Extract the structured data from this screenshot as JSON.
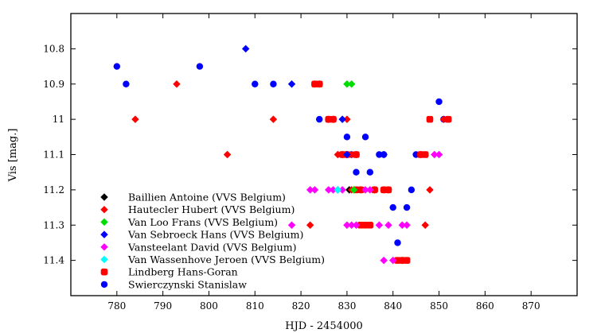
{
  "chart_data": {
    "type": "scatter",
    "title": "",
    "xlabel": "HJD - 2454000",
    "ylabel": "Vis [mag.]",
    "xlim": [
      770,
      880
    ],
    "ylim": [
      11.5,
      10.7
    ],
    "y_inverted": true,
    "x_ticks": [
      780,
      790,
      800,
      810,
      820,
      830,
      840,
      850,
      860,
      870
    ],
    "y_ticks": [
      10.8,
      10.9,
      11,
      11.1,
      11.2,
      11.3,
      11.4
    ],
    "y_tick_labels": [
      "10.8",
      "10.9",
      "11",
      "11.1",
      "11.2",
      "11.3",
      "11.4"
    ],
    "grid": false,
    "legend_position": "bottom-left",
    "series": [
      {
        "name": "Baillien Antoine (VVS Belgium)",
        "marker": "diamond",
        "color": "#000000",
        "points": [
          [
            830.5,
            11.2
          ]
        ]
      },
      {
        "name": "Hautecler Hubert (VVS Belgium)",
        "marker": "diamond",
        "color": "#ff0000",
        "points": [
          [
            784,
            11.0
          ],
          [
            793,
            10.9
          ],
          [
            804,
            11.1
          ],
          [
            814,
            11.0
          ],
          [
            822,
            11.3
          ],
          [
            823,
            10.9
          ],
          [
            824,
            10.9
          ],
          [
            826,
            11.0
          ],
          [
            827,
            11.0
          ],
          [
            828,
            11.1
          ],
          [
            829,
            11.1
          ],
          [
            830,
            11.0
          ],
          [
            830,
            11.1
          ],
          [
            831,
            11.1
          ],
          [
            831,
            11.2
          ],
          [
            832,
            11.1
          ],
          [
            833,
            11.2
          ],
          [
            836,
            11.2
          ],
          [
            838,
            11.2
          ],
          [
            839,
            11.2
          ],
          [
            842,
            11.4
          ],
          [
            846,
            11.1
          ],
          [
            847,
            11.3
          ],
          [
            848,
            11.2
          ],
          [
            851,
            11.0
          ]
        ]
      },
      {
        "name": "Van Loo Frans (VVS Belgium)",
        "marker": "diamond",
        "color": "#00dd00",
        "points": [
          [
            830,
            10.9
          ],
          [
            831,
            10.9
          ],
          [
            831.5,
            11.2
          ]
        ]
      },
      {
        "name": "Van Sebroeck Hans (VVS Belgium)",
        "marker": "diamond",
        "color": "#0000ff",
        "points": [
          [
            808,
            10.8
          ],
          [
            818,
            10.9
          ],
          [
            828,
            11.2
          ],
          [
            829,
            11.0
          ],
          [
            830,
            11.1
          ],
          [
            838,
            11.1
          ]
        ]
      },
      {
        "name": "Vansteelant David (VVS Belgium)",
        "marker": "diamond",
        "color": "#ff00ff",
        "points": [
          [
            818,
            11.3
          ],
          [
            822,
            11.2
          ],
          [
            823,
            11.2
          ],
          [
            826,
            11.2
          ],
          [
            827,
            11.2
          ],
          [
            828,
            11.2
          ],
          [
            829,
            11.2
          ],
          [
            830,
            11.3
          ],
          [
            831,
            11.3
          ],
          [
            832,
            11.3
          ],
          [
            834,
            11.2
          ],
          [
            835,
            11.2
          ],
          [
            837,
            11.3
          ],
          [
            838,
            11.4
          ],
          [
            839,
            11.3
          ],
          [
            840,
            11.4
          ],
          [
            842,
            11.3
          ],
          [
            843,
            11.3
          ],
          [
            849,
            11.1
          ],
          [
            850,
            11.1
          ]
        ]
      },
      {
        "name": "Van Wassenhove Jeroen (VVS Belgium)",
        "marker": "diamond",
        "color": "#00ffff",
        "points": [
          [
            828,
            11.2
          ]
        ]
      },
      {
        "name": "Lindberg Hans-Goran",
        "marker": "square",
        "color": "#ff0000",
        "points": [
          [
            823,
            10.9
          ],
          [
            824,
            10.9
          ],
          [
            826,
            11.0
          ],
          [
            827,
            11.0
          ],
          [
            829,
            11.1
          ],
          [
            830,
            11.1
          ],
          [
            832,
            11.1
          ],
          [
            832,
            11.2
          ],
          [
            833,
            11.2
          ],
          [
            833,
            11.3
          ],
          [
            834,
            11.3
          ],
          [
            835,
            11.3
          ],
          [
            836,
            11.2
          ],
          [
            838,
            11.2
          ],
          [
            839,
            11.2
          ],
          [
            841,
            11.4
          ],
          [
            842,
            11.4
          ],
          [
            843,
            11.4
          ],
          [
            846,
            11.1
          ],
          [
            847,
            11.1
          ],
          [
            848,
            11.0
          ],
          [
            852,
            11.0
          ]
        ]
      },
      {
        "name": "Swierczynski Stanislaw",
        "marker": "circle",
        "color": "#0000ff",
        "points": [
          [
            780,
            10.85
          ],
          [
            782,
            10.9
          ],
          [
            798,
            10.85
          ],
          [
            810,
            10.9
          ],
          [
            814,
            10.9
          ],
          [
            824,
            11.0
          ],
          [
            830,
            11.05
          ],
          [
            831,
            11.1
          ],
          [
            832,
            11.15
          ],
          [
            834,
            11.05
          ],
          [
            835,
            11.15
          ],
          [
            837,
            11.1
          ],
          [
            838,
            11.1
          ],
          [
            840,
            11.25
          ],
          [
            841,
            11.35
          ],
          [
            843,
            11.25
          ],
          [
            844,
            11.2
          ],
          [
            845,
            11.1
          ],
          [
            850,
            10.95
          ],
          [
            851,
            11.0
          ]
        ]
      }
    ]
  }
}
